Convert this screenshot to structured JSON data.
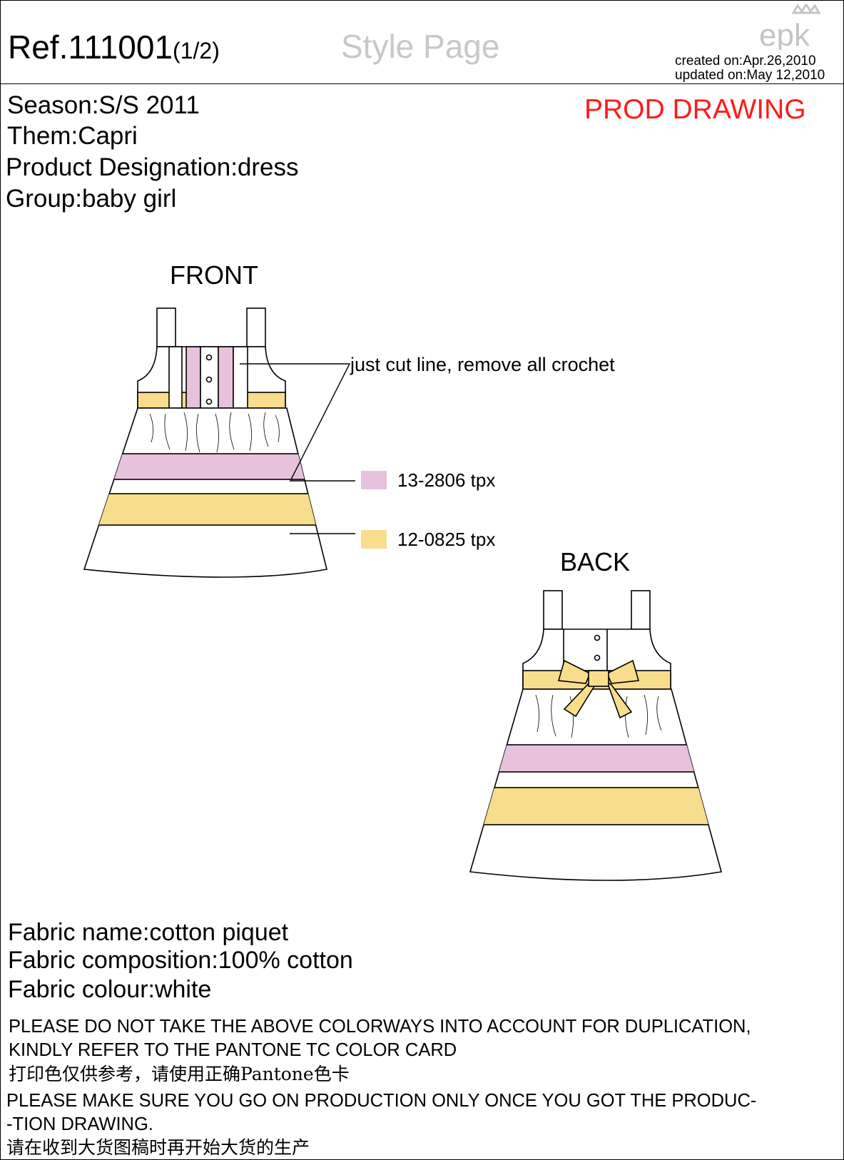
{
  "header": {
    "ref": "Ref.111001",
    "ref_suffix": "(1/2)",
    "page_type": "Style Page",
    "logo_text": "epk",
    "created_on": "created on:Apr.26,2010",
    "updated_on": "updated on:May 12,2010"
  },
  "product": {
    "season": "Season:S/S 2011",
    "theme": "Them:Capri",
    "designation": "Product Designation:dress",
    "group": "Group:baby girl",
    "status": "PROD DRAWING"
  },
  "drawings": {
    "front_label": "FRONT",
    "back_label": "BACK",
    "note": "just cut line, remove all crochet",
    "swatches": [
      {
        "code": "13-2806 tpx",
        "color": "#e8c1dd"
      },
      {
        "code": "12-0825 tpx",
        "color": "#f7dd8c"
      }
    ]
  },
  "fabric": {
    "name": "Fabric name:cotton piquet",
    "composition": "Fabric composition:100% cotton",
    "colour": "Fabric colour:white"
  },
  "disclaimer": {
    "line1": "PLEASE DO NOT TAKE THE ABOVE COLORWAYS INTO ACCOUNT FOR DUPLICATION,",
    "line2": "KINDLY REFER TO THE PANTONE TC COLOR CARD",
    "line3_cn": "打印色仅供参考，请使用正确Pantone色卡",
    "line4": "PLEASE MAKE SURE YOU GO ON PRODUCTION ONLY ONCE YOU GOT THE PRODUC-",
    "line5": "-TION DRAWING.",
    "line6_cn": "请在收到大货图稿时再开始大货的生产"
  }
}
